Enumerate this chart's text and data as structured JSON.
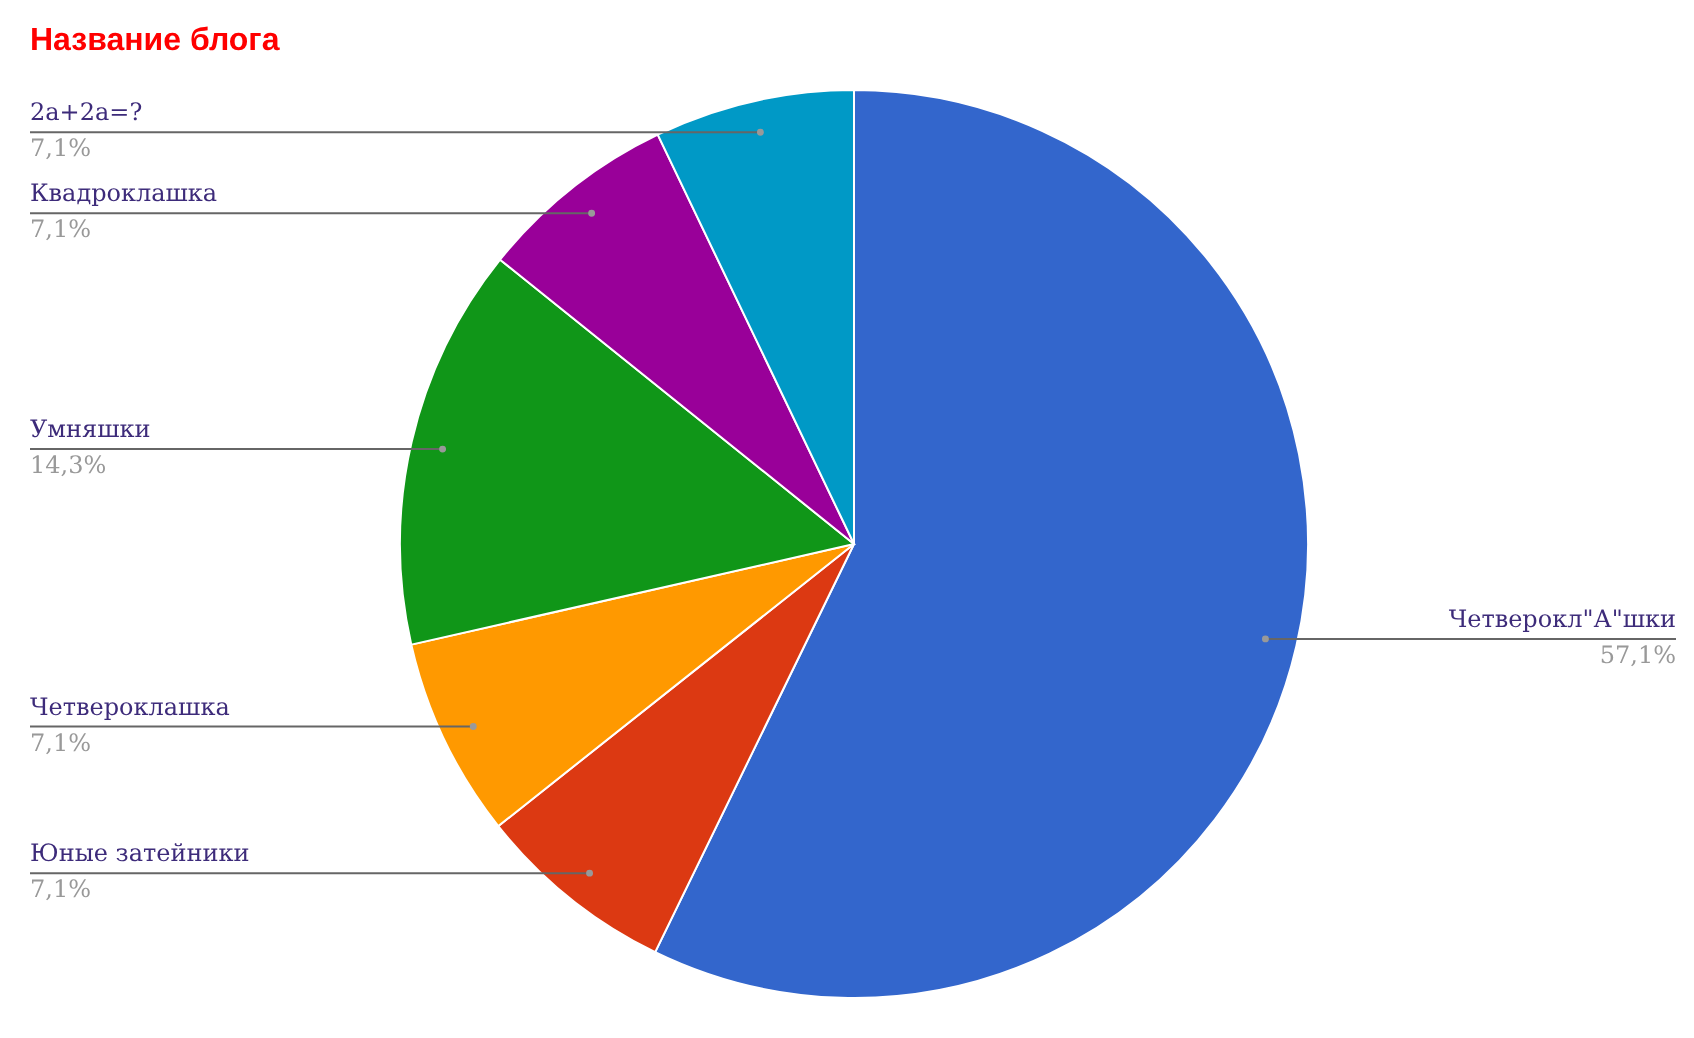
{
  "chart_data": {
    "type": "pie",
    "title": "Название блога",
    "categories": [
      "Четверокл\"А\"шки",
      "Юные затейники",
      "Четвероклашка",
      "Умняшки",
      "Квадроклашка",
      "2а+2а=?"
    ],
    "values": [
      57.1,
      7.1,
      7.1,
      14.3,
      7.1,
      7.1
    ],
    "value_labels": [
      "57,1%",
      "7,1%",
      "7,1%",
      "14,3%",
      "7,1%",
      "7,1%"
    ],
    "colors": [
      "#3366cc",
      "#dc3912",
      "#ff9900",
      "#109618",
      "#990099",
      "#0099c6"
    ]
  }
}
